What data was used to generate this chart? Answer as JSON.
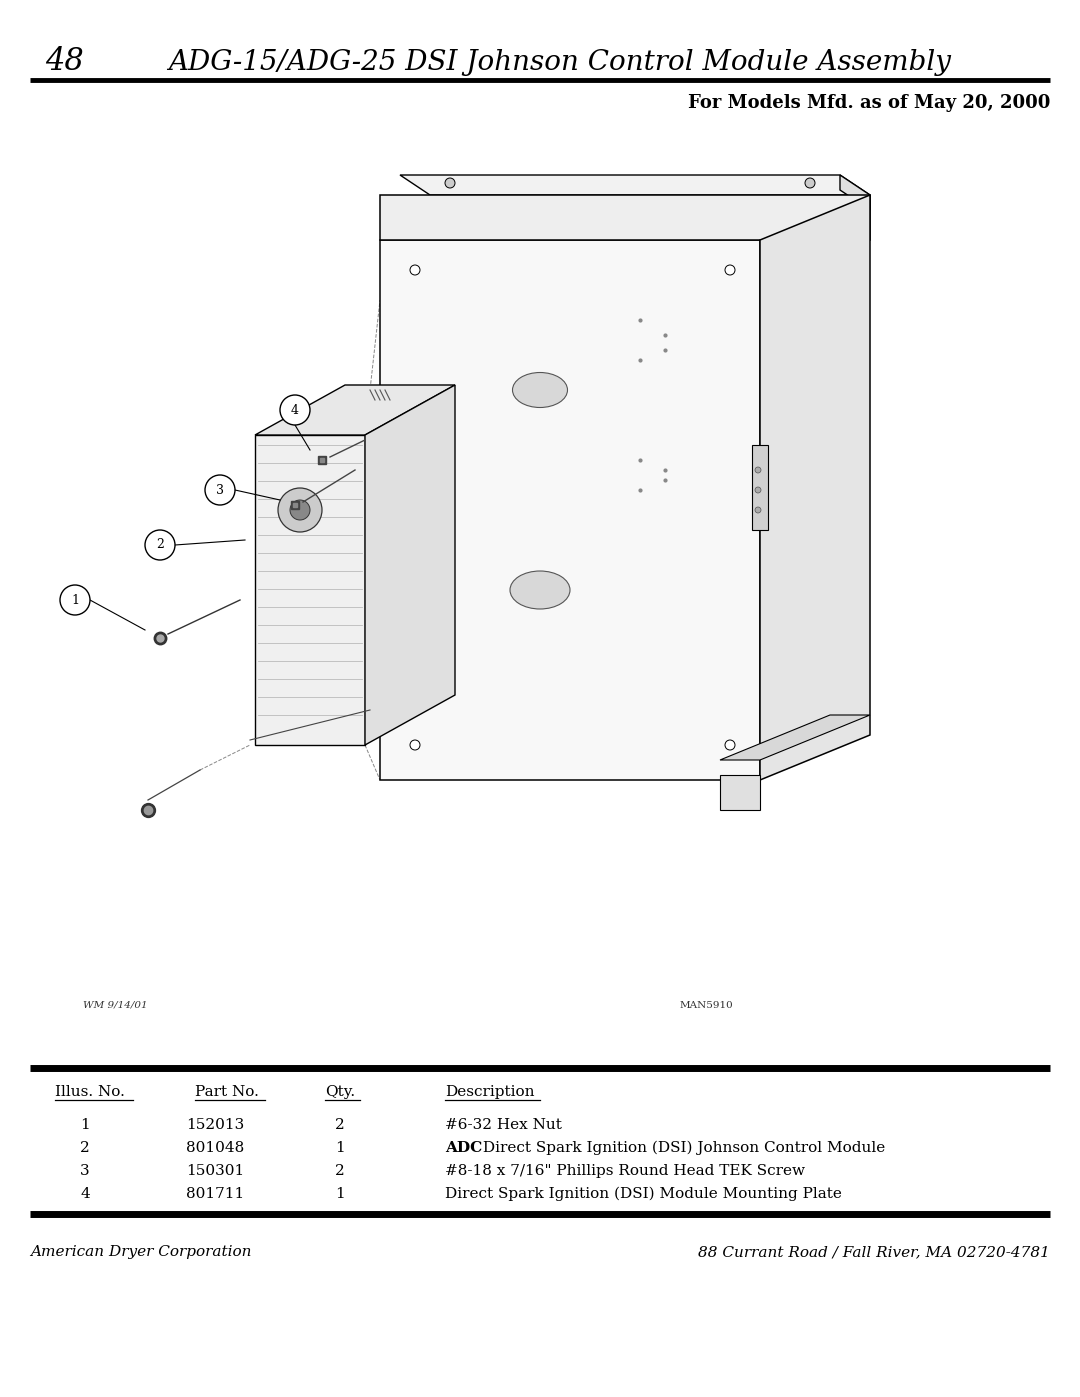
{
  "page_number": "48",
  "title": "ADG-15/ADG-25 DSI Johnson Control Module Assembly",
  "subtitle": "For Models Mfd. as of May 20, 2000",
  "bg_color": "#ffffff",
  "table_columns": [
    "Illus. No.",
    "Part No.",
    "Qty.",
    "Description"
  ],
  "table_rows": [
    [
      "1",
      "152013",
      "2",
      "#6-32 Hex Nut"
    ],
    [
      "2",
      "801048",
      "1",
      "ADC Direct Spark Ignition (DSI) Johnson Control Module"
    ],
    [
      "3",
      "150301",
      "2",
      "#8-18 x 7/16\" Phillips Round Head TEK Screw"
    ],
    [
      "4",
      "801711",
      "1",
      "Direct Spark Ignition (DSI) Module Mounting Plate"
    ]
  ],
  "adc_bold_row": 1,
  "footer_left": "American Dryer Corporation",
  "footer_right": "88 Currant Road / Fall River, MA 02720-4781",
  "diagram_note_left": "WM 9/14/01",
  "diagram_note_right": "MAN5910",
  "title_fontsize": 20,
  "subtitle_fontsize": 13,
  "table_header_fontsize": 11,
  "table_body_fontsize": 11,
  "footer_fontsize": 11,
  "page_num_fontsize": 22
}
